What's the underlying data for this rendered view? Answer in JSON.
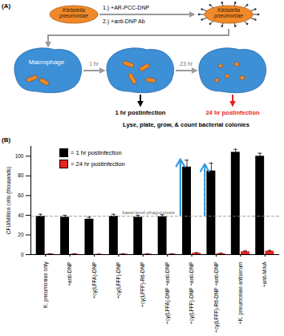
{
  "diagram": {
    "panel_label": "(A)",
    "bacterium": "Klebsiella pneumoniae",
    "steps": [
      "1.) +AR-PCC-DNP",
      "2.) +anti-DNP Ab"
    ],
    "macrophage": "Macrophage",
    "time_steps": [
      "1 hr",
      "23 hr"
    ],
    "outcomes": [
      {
        "label": "1 hr postinfection",
        "color": "#000000"
      },
      {
        "label": "24 hr postinfection",
        "color": "#e8231f"
      }
    ],
    "caption": "Lyse, plate, grow, & count bacterial colonies"
  },
  "chart_data": {
    "type": "bar",
    "panel_label": "(B)",
    "y_label": "CFU/Million cells (thousands)",
    "categories": [
      "K. pneumoniae only",
      "+anti-DNP",
      "+cy(LFFA)-DNP",
      "+cy(LFFF)-DNP",
      "+cy(LFFF)-R6-DNP",
      "+cy(LFFA)-DNP +anti-DNP",
      "+cy(LFFF)-DNP +anti-DNP",
      "+cy(LFFF)-R6-DNP +anti-DNP",
      "+K. pneumoniae antiserum",
      "+anti-MrkA"
    ],
    "series": [
      {
        "name": "= 1 hr postinfection",
        "color": "#000000",
        "values": [
          39,
          38,
          36,
          39,
          38,
          38.5,
          89,
          85,
          104,
          100
        ],
        "errors": [
          2,
          2,
          2,
          2,
          2,
          2,
          7,
          8,
          3,
          3
        ]
      },
      {
        "name": "= 24 hr postinfection",
        "color": "#e8231f",
        "values": [
          0.5,
          0.5,
          0.3,
          0.5,
          0.5,
          0.5,
          1.5,
          1,
          3,
          3.5
        ],
        "errors": [
          0.3,
          0.3,
          0.2,
          0.3,
          0.3,
          0.3,
          0.5,
          0.5,
          0.8,
          0.8
        ]
      }
    ],
    "reference_line": {
      "value": 39,
      "label": "basal-level phagocytosis",
      "line_style": "dashed"
    },
    "arrows": [
      {
        "category": "+cy(LFFF)-DNP +anti-DNP",
        "from": 40,
        "to": 97,
        "line_style": "solid",
        "color": "#3399dd"
      },
      {
        "category": "+cy(LFFF)-R6-DNP +anti-DNP",
        "from": 40,
        "to": 92,
        "line_style": "dashed",
        "color": "#3399dd"
      }
    ],
    "ylim": [
      0,
      110
    ],
    "yticks": [
      0,
      20,
      40,
      60,
      80,
      100
    ],
    "legend": "top-left"
  }
}
